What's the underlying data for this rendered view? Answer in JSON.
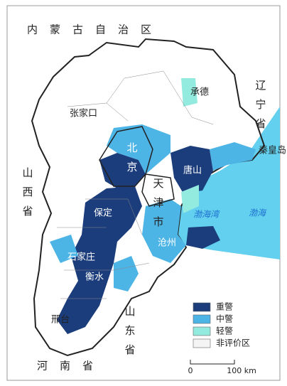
{
  "regions": {
    "inner_mongolia": "内蒙古自治区",
    "liaoning": "辽宁省",
    "shanxi": "山西省",
    "shandong": "山东省",
    "henan": "河南省",
    "beijing": "北京",
    "tianjin": "天津市"
  },
  "cities": {
    "chengde": "承德",
    "zhangjiakou": "张家口",
    "qinhuangdao": "秦皇岛",
    "tangshan": "唐山",
    "baoding": "保定",
    "cangzhou": "沧州",
    "hengshui": "衡水",
    "xingtai": "邢台",
    "shijiazhuang": "石家庄"
  },
  "seas": {
    "bohai_bay": "渤海湾",
    "bohai": "渤海"
  },
  "legend": {
    "items": [
      {
        "label": "重警",
        "color": "#1c3d7c"
      },
      {
        "label": "中警",
        "color": "#4db4e6"
      },
      {
        "label": "轻警",
        "color": "#93eadf"
      },
      {
        "label": "非评价区",
        "color": "#f4f4f4"
      }
    ]
  },
  "scale": {
    "labels": [
      "0",
      "100 km"
    ]
  }
}
